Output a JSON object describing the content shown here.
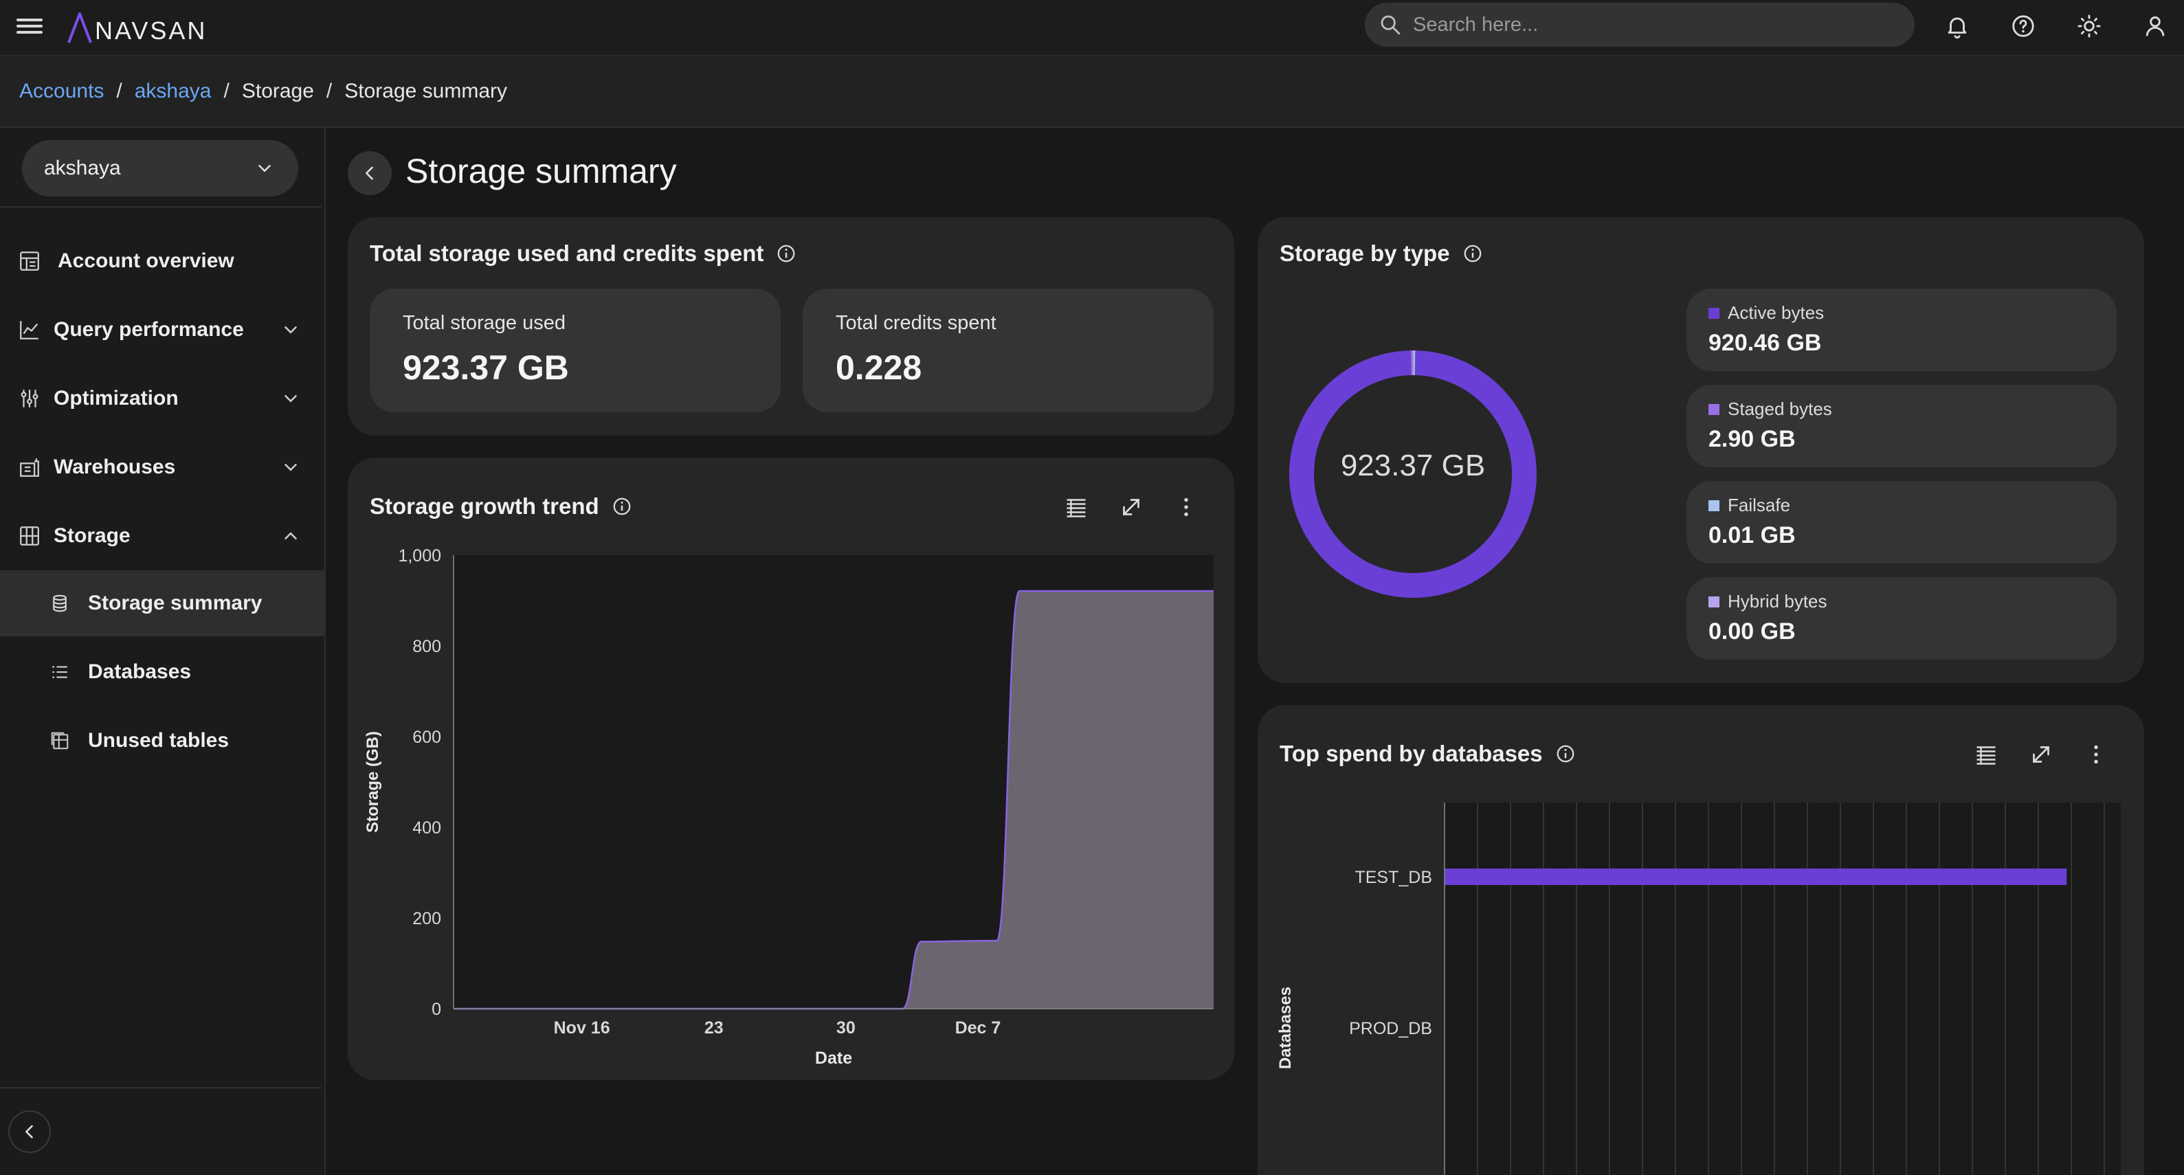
{
  "app": {
    "logo_text": "NAVSAN"
  },
  "search": {
    "placeholder": "Search here..."
  },
  "breadcrumb": {
    "accounts": "Accounts",
    "account": "akshaya",
    "section": "Storage",
    "page": "Storage summary"
  },
  "sidebar": {
    "account_select": "akshaya",
    "items": {
      "account_overview": "Account overview",
      "query_performance": "Query performance",
      "optimization": "Optimization",
      "warehouses": "Warehouses",
      "storage": "Storage",
      "storage_summary": "Storage summary",
      "databases": "Databases",
      "unused_tables": "Unused tables"
    }
  },
  "page": {
    "title": "Storage summary"
  },
  "totals_card": {
    "title": "Total storage used and credits spent",
    "storage_label": "Total storage used",
    "storage_value": "923.37 GB",
    "credits_label": "Total credits spent",
    "credits_value": "0.228"
  },
  "storage_by_type": {
    "title": "Storage by type",
    "center_label": "923.37 GB",
    "legend": [
      {
        "name": "Active bytes",
        "value": "920.46 GB",
        "color": "#6a3fd6"
      },
      {
        "name": "Staged bytes",
        "value": "2.90 GB",
        "color": "#9b6fe6"
      },
      {
        "name": "Failsafe",
        "value": "0.01 GB",
        "color": "#a9c4ef"
      },
      {
        "name": "Hybrid bytes",
        "value": "0.00 GB",
        "color": "#b7a4ee"
      }
    ]
  },
  "growth_card": {
    "title": "Storage growth trend"
  },
  "spend_card": {
    "title": "Top spend by databases"
  },
  "chart_data": [
    {
      "type": "area",
      "title": "Storage growth trend",
      "xlabel": "Date",
      "ylabel": "Storage (GB)",
      "ylim": [
        0,
        1000
      ],
      "yticks": [
        "0",
        "200",
        "400",
        "600",
        "800",
        "1,000"
      ],
      "xticks": [
        {
          "label": "Nov 16",
          "day": 16
        },
        {
          "label": "23",
          "day": 23
        },
        {
          "label": "30",
          "day": 30
        },
        {
          "label": "Dec 7",
          "day": 37
        }
      ],
      "xrange": [
        9.2,
        49.5
      ],
      "points": [
        {
          "day": 9.2,
          "gb": 0
        },
        {
          "day": 33.0,
          "gb": 0
        },
        {
          "day": 34.0,
          "gb": 148
        },
        {
          "day": 38.0,
          "gb": 150
        },
        {
          "day": 39.2,
          "gb": 921
        },
        {
          "day": 49.5,
          "gb": 921
        }
      ],
      "color": "#8a63e0",
      "fill": "#6b6570"
    },
    {
      "type": "bar",
      "orientation": "horizontal",
      "title": "Top spend by databases",
      "ylabel": "Databases",
      "categories": [
        "TEST_DB",
        "PROD_DB"
      ],
      "values": [
        0.92,
        0
      ],
      "xlim": [
        0,
        1.0
      ],
      "color": "#6a3fd6"
    },
    {
      "type": "pie",
      "title": "Storage by type",
      "labels": [
        "Active bytes",
        "Staged bytes",
        "Failsafe",
        "Hybrid bytes"
      ],
      "values": [
        920.46,
        2.9,
        0.01,
        0.0
      ],
      "colors": [
        "#6a3fd6",
        "#9b6fe6",
        "#a9c4ef",
        "#b7a4ee"
      ]
    }
  ]
}
